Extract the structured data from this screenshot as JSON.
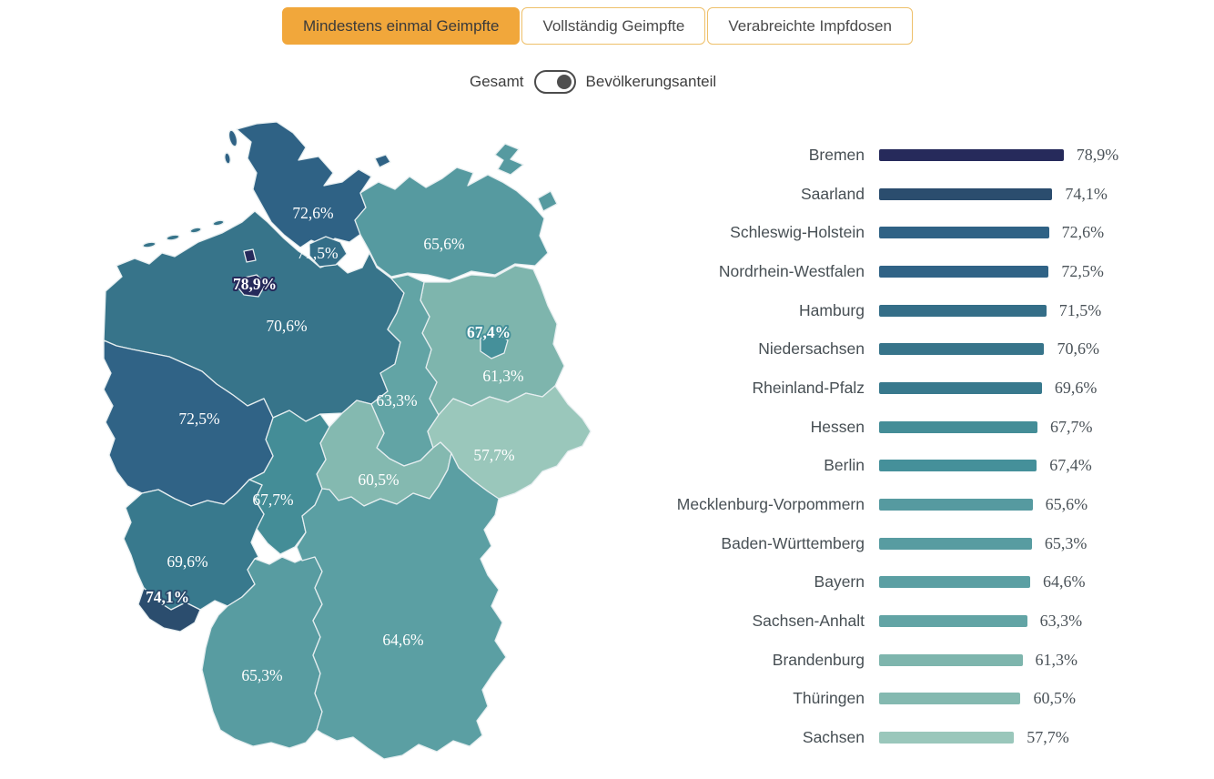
{
  "tabs": [
    {
      "label": "Mindestens einmal Geimpfte",
      "active": true
    },
    {
      "label": "Vollständig Geimpfte",
      "active": false
    },
    {
      "label": "Verabreichte Impfdosen",
      "active": false
    }
  ],
  "toggle": {
    "left_label": "Gesamt",
    "right_label": "Bevölkerungsanteil",
    "selected": "Bevölkerungsanteil"
  },
  "colors": {
    "accent": "#f1a73b",
    "tab_border": "#eec06a",
    "map_border": "#e6eef0",
    "text_dark": "#3e3e3e",
    "bar_label_text": "#474f54",
    "map_label_text": "#ffffff"
  },
  "states": [
    {
      "id": "HB",
      "name": "Bremen",
      "value": 78.9,
      "label": "78,9%",
      "color": "#262a5b"
    },
    {
      "id": "SL",
      "name": "Saarland",
      "value": 74.1,
      "label": "74,1%",
      "color": "#2b4d6e"
    },
    {
      "id": "SH",
      "name": "Schleswig-Holstein",
      "value": 72.6,
      "label": "72,6%",
      "color": "#2f6285"
    },
    {
      "id": "NW",
      "name": "Nordrhein-Westfalen",
      "value": 72.5,
      "label": "72,5%",
      "color": "#306386"
    },
    {
      "id": "HH",
      "name": "Hamburg",
      "value": 71.5,
      "label": "71,5%",
      "color": "#346e88"
    },
    {
      "id": "NI",
      "name": "Niedersachsen",
      "value": 70.6,
      "label": "70,6%",
      "color": "#37748a"
    },
    {
      "id": "RP",
      "name": "Rheinland-Pfalz",
      "value": 69.6,
      "label": "69,6%",
      "color": "#38798d"
    },
    {
      "id": "HE",
      "name": "Hessen",
      "value": 67.7,
      "label": "67,7%",
      "color": "#448d97"
    },
    {
      "id": "BE",
      "name": "Berlin",
      "value": 67.4,
      "label": "67,4%",
      "color": "#45909a"
    },
    {
      "id": "MV",
      "name": "Mecklenburg-Vorpommern",
      "value": 65.6,
      "label": "65,6%",
      "color": "#569aa0"
    },
    {
      "id": "BW",
      "name": "Baden-Württemberg",
      "value": 65.3,
      "label": "65,3%",
      "color": "#589ca1"
    },
    {
      "id": "BY",
      "name": "Bayern",
      "value": 64.6,
      "label": "64,6%",
      "color": "#5b9fa3"
    },
    {
      "id": "ST",
      "name": "Sachsen-Anhalt",
      "value": 63.3,
      "label": "63,3%",
      "color": "#62a4a5"
    },
    {
      "id": "BB",
      "name": "Brandenburg",
      "value": 61.3,
      "label": "61,3%",
      "color": "#7eb5ad"
    },
    {
      "id": "TH",
      "name": "Thüringen",
      "value": 60.5,
      "label": "60,5%",
      "color": "#84b9b0"
    },
    {
      "id": "SN",
      "name": "Sachsen",
      "value": 57.7,
      "label": "57,7%",
      "color": "#9ac7bb"
    }
  ],
  "chart_data": {
    "type": "bar",
    "orientation": "horizontal",
    "title": "",
    "unit": "%",
    "xlim": [
      0,
      80
    ],
    "sort": "descending",
    "legend": false,
    "categories": [
      "Bremen",
      "Saarland",
      "Schleswig-Holstein",
      "Nordrhein-Westfalen",
      "Hamburg",
      "Niedersachsen",
      "Rheinland-Pfalz",
      "Hessen",
      "Berlin",
      "Mecklenburg-Vorpommern",
      "Baden-Württemberg",
      "Bayern",
      "Sachsen-Anhalt",
      "Brandenburg",
      "Thüringen",
      "Sachsen"
    ],
    "values": [
      78.9,
      74.1,
      72.6,
      72.5,
      71.5,
      70.6,
      69.6,
      67.7,
      67.4,
      65.6,
      65.3,
      64.6,
      63.3,
      61.3,
      60.5,
      57.7
    ],
    "value_labels": [
      "78,9%",
      "74,1%",
      "72,6%",
      "72,5%",
      "71,5%",
      "70,6%",
      "69,6%",
      "67,7%",
      "67,4%",
      "65,6%",
      "65,3%",
      "64,6%",
      "63,3%",
      "61,3%",
      "60,5%",
      "57,7%"
    ],
    "colors": [
      "#262a5b",
      "#2b4d6e",
      "#2f6285",
      "#306386",
      "#346e88",
      "#37748a",
      "#38798d",
      "#448d97",
      "#45909a",
      "#569aa0",
      "#589ca1",
      "#5b9fa3",
      "#62a4a5",
      "#7eb5ad",
      "#84b9b0",
      "#9ac7bb"
    ]
  }
}
